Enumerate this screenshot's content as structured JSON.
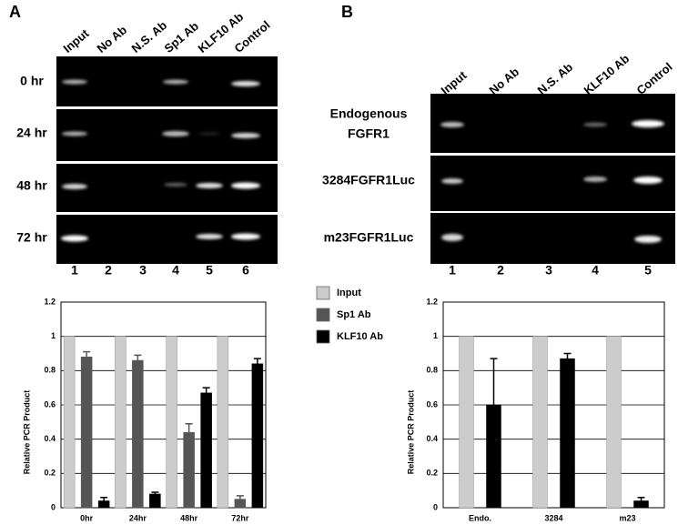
{
  "panels": [
    {
      "label": "A",
      "lanes": [
        "Input",
        "No Ab",
        "N.S. Ab",
        "Sp1 Ab",
        "KLF10 Ab",
        "Control"
      ],
      "lane_numbers": [
        "1",
        "2",
        "3",
        "4",
        "5",
        "6"
      ],
      "rows": [
        [
          "0 hr"
        ],
        [
          "24 hr"
        ],
        [
          "48 hr"
        ],
        [
          "72 hr"
        ]
      ]
    },
    {
      "label": "B",
      "lanes": [
        "Input",
        "No Ab",
        "N.S. Ab",
        "KLF10 Ab",
        "Control"
      ],
      "lane_numbers": [
        "1",
        "2",
        "3",
        "4",
        "5"
      ],
      "rows": [
        [
          "Endogenous",
          "FGFR1"
        ],
        [
          "3284FGFR1Luc"
        ],
        [
          "m23FGFR1Luc"
        ]
      ]
    }
  ],
  "chart_data": [
    {
      "type": "bar",
      "ylabel": "Relative PCR Product",
      "categories": [
        "0hr",
        "24hr",
        "48hr",
        "72hr"
      ],
      "series": [
        {
          "name": "Input",
          "color": "#cccccc",
          "values": [
            1,
            1,
            1,
            1
          ]
        },
        {
          "name": "Sp1 Ab",
          "color": "#555555",
          "values": [
            0.88,
            0.86,
            0.44,
            0.05
          ],
          "errors": [
            0.03,
            0.03,
            0.05,
            0.02
          ]
        },
        {
          "name": "KLF10 Ab",
          "color": "#000000",
          "values": [
            0.04,
            0.08,
            0.67,
            0.84
          ],
          "errors": [
            0.02,
            0.01,
            0.03,
            0.03
          ]
        }
      ],
      "ylim": [
        0,
        1.2
      ],
      "yticks": [
        0,
        0.2,
        0.4,
        0.6,
        0.8,
        1,
        1.2
      ],
      "grid": true
    },
    {
      "type": "bar",
      "ylabel": "Relative PCR Product",
      "categories": [
        "Endo.",
        "3284",
        "m23"
      ],
      "series": [
        {
          "color": "#cccccc",
          "values": [
            1,
            1,
            1
          ]
        },
        {
          "color": "#000000",
          "values": [
            0.6,
            0.87,
            0.04
          ],
          "errors": [
            0.27,
            0.03,
            0.02
          ]
        }
      ],
      "ylim": [
        0,
        1.2
      ],
      "yticks": [
        0,
        0.2,
        0.4,
        0.6,
        0.8,
        1,
        1.2
      ],
      "grid": true
    }
  ]
}
